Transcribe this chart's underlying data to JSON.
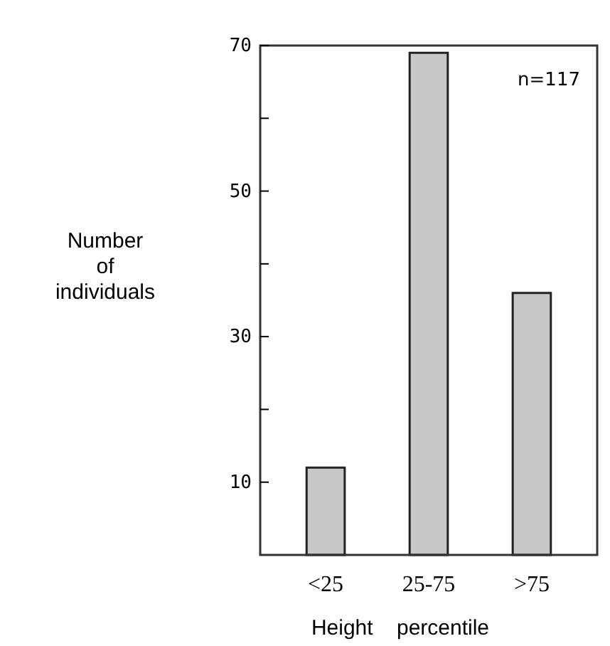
{
  "chart_data": {
    "type": "bar",
    "categories": [
      "<25",
      "25-75",
      ">75"
    ],
    "values": [
      12,
      69,
      36
    ],
    "color": "#c8c8c8",
    "ylim": [
      0,
      70
    ],
    "yticks": [
      10,
      {
        "value": 20,
        "label": null
      },
      30,
      {
        "value": 40,
        "label": null
      },
      50,
      {
        "value": 60,
        "label": null
      },
      70
    ],
    "xlabel": "Height    percentile",
    "ylabel": "Number of individuals",
    "annotations": [
      "n=117"
    ],
    "grid": false
  }
}
